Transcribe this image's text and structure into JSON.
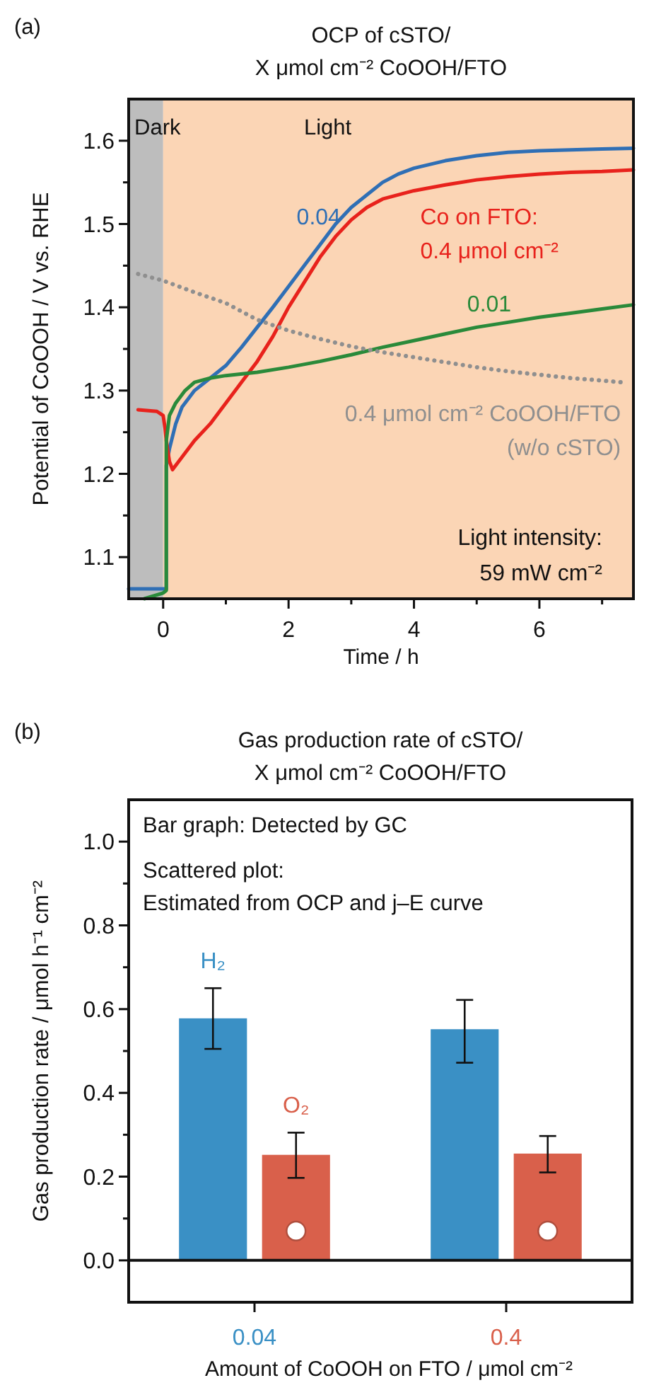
{
  "chart_data": [
    {
      "type": "line",
      "title": "OCP of cSTO/\nX μmol cm⁻² CoOOH/FTO",
      "xlabel": "Time / h",
      "ylabel": "Potential of CoOOH / V vs. RHE",
      "xlim": [
        -0.55,
        7.5
      ],
      "ylim": [
        1.05,
        1.65
      ],
      "xticks": [
        0,
        {
          "value": 1,
          "label": null
        },
        2,
        {
          "value": 3,
          "label": null
        },
        4,
        {
          "value": 5,
          "label": null
        },
        6,
        {
          "value": 7,
          "label": null
        }
      ],
      "yticks": [
        1.1,
        {
          "value": 1.15,
          "label": null
        },
        1.2,
        {
          "value": 1.25,
          "label": null
        },
        1.3,
        {
          "value": 1.35,
          "label": null
        },
        1.4,
        {
          "value": 1.45,
          "label": null
        },
        1.5,
        {
          "value": 1.55,
          "label": null
        },
        1.6
      ],
      "grid": false,
      "bands": [
        {
          "axis": "x",
          "from": -0.55,
          "to": 0,
          "label": "Dark",
          "color": "#bdbdbd"
        },
        {
          "axis": "x",
          "from": 0,
          "to": 7.5,
          "label": "Light",
          "color": "#fbd5b5"
        }
      ],
      "series": [
        {
          "name": "0.04",
          "color": "#2f6fb5",
          "x": [
            -0.55,
            0.05,
            0.05,
            0.1,
            0.2,
            0.3,
            0.5,
            0.75,
            1,
            1.25,
            1.5,
            1.75,
            2,
            2.25,
            2.5,
            2.75,
            3,
            3.25,
            3.5,
            3.75,
            4,
            4.5,
            5,
            5.5,
            6,
            6.5,
            7,
            7.5
          ],
          "values": [
            1.062,
            1.062,
            1.21,
            1.23,
            1.26,
            1.28,
            1.3,
            1.315,
            1.33,
            1.352,
            1.376,
            1.4,
            1.425,
            1.45,
            1.475,
            1.5,
            1.52,
            1.535,
            1.55,
            1.56,
            1.567,
            1.576,
            1.582,
            1.586,
            1.588,
            1.589,
            1.59,
            1.591
          ]
        },
        {
          "name": "Co on FTO:\n0.4 μmol cm⁻²",
          "color": "#e8221c",
          "x": [
            -0.4,
            -0.1,
            0,
            0.03,
            0.05,
            0.1,
            0.15,
            0.25,
            0.5,
            0.75,
            1,
            1.25,
            1.5,
            1.75,
            2,
            2.25,
            2.5,
            2.75,
            3,
            3.25,
            3.5,
            4,
            4.5,
            5,
            5.5,
            6,
            6.5,
            7,
            7.5
          ],
          "values": [
            1.277,
            1.275,
            1.27,
            1.255,
            1.24,
            1.215,
            1.205,
            1.215,
            1.24,
            1.26,
            1.285,
            1.31,
            1.335,
            1.365,
            1.4,
            1.43,
            1.46,
            1.485,
            1.505,
            1.52,
            1.53,
            1.54,
            1.547,
            1.553,
            1.557,
            1.56,
            1.562,
            1.563,
            1.565
          ]
        },
        {
          "name": "0.01",
          "color": "#2a8a3a",
          "x": [
            -0.3,
            0,
            0.05,
            0.05,
            0.1,
            0.2,
            0.35,
            0.5,
            0.75,
            1,
            1.5,
            2,
            2.5,
            3,
            3.5,
            4,
            4.5,
            5,
            5.5,
            6,
            6.5,
            7,
            7.5
          ],
          "values": [
            1.05,
            1.057,
            1.06,
            1.24,
            1.27,
            1.285,
            1.3,
            1.31,
            1.315,
            1.318,
            1.322,
            1.328,
            1.335,
            1.343,
            1.352,
            1.36,
            1.368,
            1.376,
            1.382,
            1.388,
            1.393,
            1.398,
            1.403
          ]
        },
        {
          "name": "0.4 μmol cm⁻² CoOOH/FTO\n(w/o cSTO)",
          "color": "#8f8f8f",
          "line_style": "dotted",
          "x": [
            -0.4,
            0,
            0.5,
            1,
            1.5,
            2,
            2.5,
            3,
            3.5,
            4,
            4.5,
            5,
            5.5,
            6,
            6.5,
            7,
            7.3
          ],
          "values": [
            1.44,
            1.432,
            1.418,
            1.405,
            1.385,
            1.372,
            1.362,
            1.353,
            1.346,
            1.34,
            1.334,
            1.328,
            1.323,
            1.319,
            1.315,
            1.312,
            1.31
          ]
        }
      ],
      "annotations": [
        "(a)",
        "Light intensity:\n59 mW cm⁻²"
      ]
    },
    {
      "type": "bar",
      "title": "Gas production rate of cSTO/\nX μmol cm⁻² CoOOH/FTO",
      "xlabel": "Amount of CoOOH on FTO / μmol cm⁻²",
      "ylabel": "Gas production rate / μmol h⁻¹ cm⁻²",
      "categories": [
        "0.04",
        "0.4"
      ],
      "ylim": [
        -0.1,
        1.1
      ],
      "yticks": [
        {
          "value": 0,
          "label": "0.0"
        },
        {
          "value": 0.1,
          "label": null
        },
        0.2,
        {
          "value": 0.3,
          "label": null
        },
        0.4,
        {
          "value": 0.5,
          "label": null
        },
        0.6,
        {
          "value": 0.7,
          "label": null
        },
        0.8,
        {
          "value": 0.9,
          "label": null
        },
        {
          "value": 1,
          "label": "1.0"
        }
      ],
      "grid": false,
      "ref_lines": [
        {
          "axis": "y",
          "value": 0
        }
      ],
      "series": [
        {
          "name": "H₂",
          "color": "#3a90c5",
          "values": [
            0.578,
            0.552
          ],
          "errors": [
            [
              0.505,
              0.65
            ],
            [
              0.472,
              0.622
            ]
          ]
        },
        {
          "name": "O₂",
          "color": "#d9604b",
          "values": [
            0.252,
            0.255
          ],
          "errors": [
            [
              0.197,
              0.305
            ],
            [
              0.21,
              0.297
            ]
          ]
        },
        {
          "type": "scatter",
          "marker": "circle",
          "color": "#ffffff",
          "x": [
            "0.04",
            "0.4"
          ],
          "values": [
            0.07,
            0.07
          ]
        }
      ],
      "annotations": [
        "(b)",
        "Bar graph: Detected by GC",
        "Scattered plot:\nEstimated from OCP and j–E curve"
      ]
    }
  ]
}
